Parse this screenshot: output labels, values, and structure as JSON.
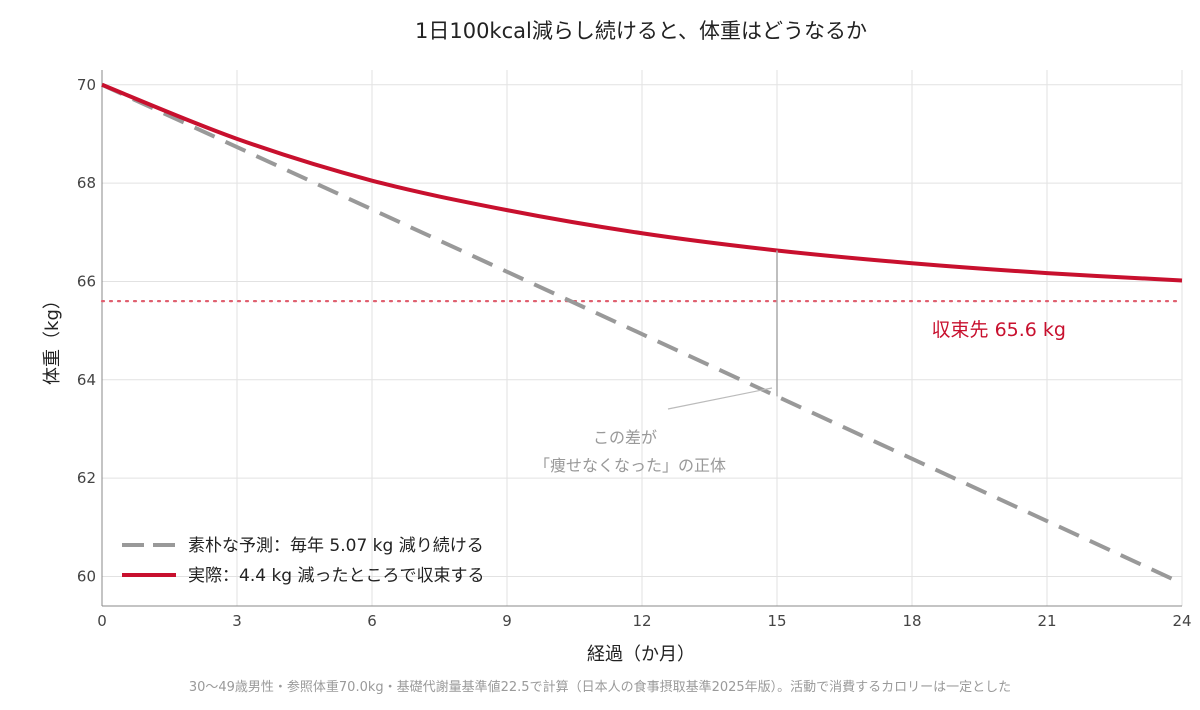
{
  "chart_data": {
    "type": "line",
    "title": "1日100kcal減らし続けると、体重はどうなるか",
    "xlabel": "経過（か月）",
    "ylabel": "体重（kg）",
    "xlim": [
      0,
      24
    ],
    "ylim": [
      59.4,
      70.3
    ],
    "x_ticks": [
      0,
      3,
      6,
      9,
      12,
      15,
      18,
      21,
      24
    ],
    "y_ticks": [
      60,
      62,
      64,
      66,
      68,
      70
    ],
    "grid": true,
    "legend_position": "bottom-left",
    "series": [
      {
        "name": "素朴な予測：毎年 5.07 kg 減り続ける",
        "style": "dashed",
        "color": "#999999",
        "x": [
          0,
          24
        ],
        "y": [
          70.0,
          59.86
        ]
      },
      {
        "name": "実際：4.4 kg 減ったところで収束する",
        "style": "solid",
        "color": "#c8102e",
        "x": [
          0,
          3,
          6,
          9,
          12,
          15,
          18,
          21,
          24
        ],
        "y": [
          70.0,
          68.9,
          68.05,
          67.45,
          66.98,
          66.63,
          66.37,
          66.17,
          66.02
        ]
      }
    ],
    "reference_line": {
      "y": 65.6,
      "style": "dotted",
      "color": "#e06070",
      "label": "収束先 65.6 kg"
    },
    "annotation": {
      "line1": "この差が",
      "line2": "「痩せなくなった」の正体",
      "x": 15
    }
  },
  "footnote": "30〜49歳男性・参照体重70.0kg・基礎代謝量基準値22.5で計算（日本人の食事摂取基準2025年版）。活動で消費するカロリーは一定とした"
}
